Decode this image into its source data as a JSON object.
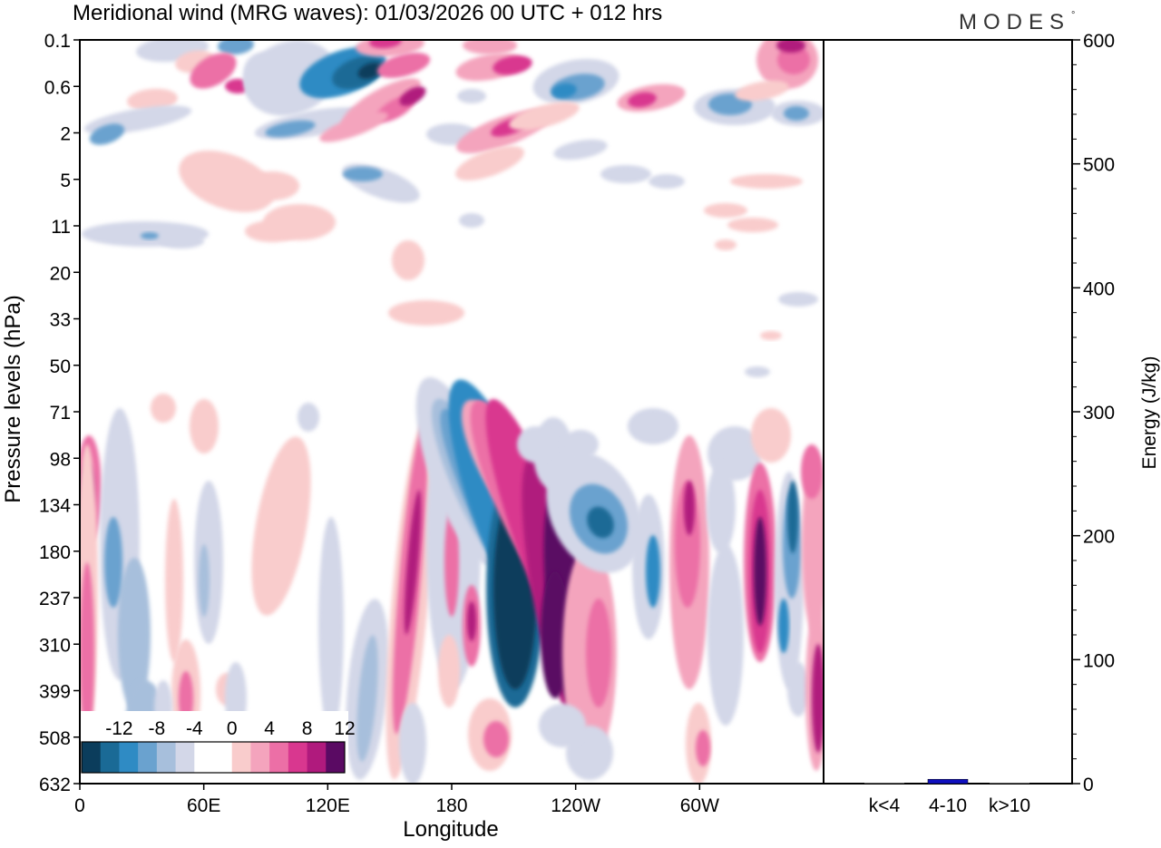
{
  "brand": "MODES",
  "brand_mark": "°",
  "chart_data": [
    {
      "type": "heatmap",
      "title": "Meridional wind (MRG waves):  01/03/2026  00 UTC  + 012 hrs",
      "xlabel": "Longitude",
      "ylabel": "Pressure levels (hPa)",
      "x_ticks": [
        "0",
        "60E",
        "120E",
        "180",
        "120W",
        "60W"
      ],
      "y_ticks": [
        "0.1",
        "0.6",
        "2",
        "5",
        "11",
        "20",
        "33",
        "50",
        "71",
        "98",
        "134",
        "180",
        "237",
        "310",
        "399",
        "508",
        "632"
      ],
      "colorbar": {
        "labels": [
          "-12",
          "-8",
          "-4",
          "0",
          "4",
          "8",
          "12"
        ],
        "colors": [
          "#0b3d5c",
          "#1a6a96",
          "#2f8bc4",
          "#6aa2cf",
          "#a7bfdc",
          "#d3d7e8",
          "#ffffff",
          "#ffffff",
          "#f9cccc",
          "#f4a4bd",
          "#ec6fa6",
          "#d9378f",
          "#b01a7d",
          "#5a0a63"
        ]
      },
      "features": [
        {
          "lon": 200,
          "level": "237",
          "value": -16,
          "sign": "negative"
        },
        {
          "lon": 228,
          "level": "237",
          "value": 16,
          "sign": "positive"
        },
        {
          "lon": 255,
          "level": "134",
          "value": -10,
          "sign": "negative"
        },
        {
          "lon": 290,
          "level": "180",
          "value": 8,
          "sign": "positive"
        },
        {
          "lon": 330,
          "level": "237",
          "value": 14,
          "sign": "positive"
        },
        {
          "lon": 343,
          "level": "180",
          "value": -12,
          "sign": "negative"
        },
        {
          "lon": 5,
          "level": "134",
          "value": 10,
          "sign": "positive"
        },
        {
          "lon": 140,
          "level": "0.6",
          "value": -12,
          "sign": "negative"
        },
        {
          "lon": 80,
          "level": "0.6",
          "value": 10,
          "sign": "positive"
        }
      ]
    },
    {
      "type": "bar",
      "ylabel": "Energy (J/kg)",
      "categories": [
        "k<4",
        "4-10",
        "k>10"
      ],
      "values": [
        0.5,
        3.5,
        0.5
      ],
      "ylim": [
        0,
        600
      ],
      "y_ticks": [
        "0",
        "100",
        "200",
        "300",
        "400",
        "500",
        "600"
      ],
      "bar_color": "#1010c0"
    }
  ]
}
